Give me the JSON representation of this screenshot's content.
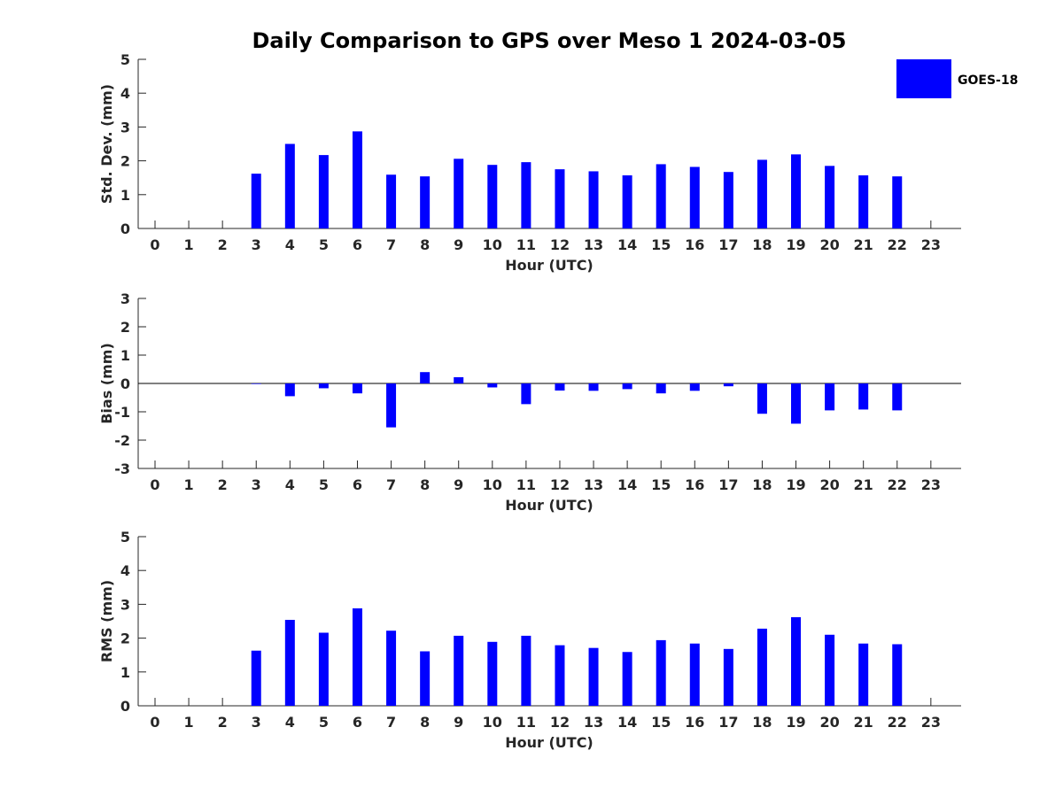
{
  "title": "Daily Comparison to GPS over Meso 1 2024-03-05",
  "legend": {
    "label": "GOES-18",
    "color": "#0000ff",
    "position": "top-right"
  },
  "colors": {
    "bar": "#0000ff",
    "axis": "#262626"
  },
  "chart_data": [
    {
      "type": "bar",
      "xlabel": "Hour (UTC)",
      "ylabel": "Std. Dev. (mm)",
      "ylim": [
        0,
        5
      ],
      "yticks": [
        0,
        1,
        2,
        3,
        4,
        5
      ],
      "categories": [
        0,
        1,
        2,
        3,
        4,
        5,
        6,
        7,
        8,
        9,
        10,
        11,
        12,
        13,
        14,
        15,
        16,
        17,
        18,
        19,
        20,
        21,
        22,
        23
      ],
      "series": [
        {
          "name": "GOES-18",
          "values": [
            null,
            null,
            null,
            1.62,
            2.5,
            2.17,
            2.87,
            1.59,
            1.54,
            2.06,
            1.88,
            1.96,
            1.75,
            1.69,
            1.57,
            1.9,
            1.82,
            1.67,
            2.03,
            2.19,
            1.85,
            1.57,
            1.54,
            null
          ]
        }
      ]
    },
    {
      "type": "bar",
      "xlabel": "Hour (UTC)",
      "ylabel": "Bias (mm)",
      "ylim": [
        -3,
        3
      ],
      "yticks": [
        -3,
        -2,
        -1,
        0,
        1,
        2,
        3
      ],
      "zero_line": true,
      "categories": [
        0,
        1,
        2,
        3,
        4,
        5,
        6,
        7,
        8,
        9,
        10,
        11,
        12,
        13,
        14,
        15,
        16,
        17,
        18,
        19,
        20,
        21,
        22,
        23
      ],
      "series": [
        {
          "name": "GOES-18",
          "values": [
            null,
            null,
            null,
            -0.02,
            -0.45,
            -0.17,
            -0.35,
            -1.55,
            0.4,
            0.22,
            -0.14,
            -0.73,
            -0.25,
            -0.26,
            -0.2,
            -0.35,
            -0.26,
            -0.1,
            -1.07,
            -1.42,
            -0.95,
            -0.92,
            -0.95,
            null
          ]
        }
      ]
    },
    {
      "type": "bar",
      "xlabel": "Hour (UTC)",
      "ylabel": "RMS (mm)",
      "ylim": [
        0,
        5
      ],
      "yticks": [
        0,
        1,
        2,
        3,
        4,
        5
      ],
      "categories": [
        0,
        1,
        2,
        3,
        4,
        5,
        6,
        7,
        8,
        9,
        10,
        11,
        12,
        13,
        14,
        15,
        16,
        17,
        18,
        19,
        20,
        21,
        22,
        23
      ],
      "series": [
        {
          "name": "GOES-18",
          "values": [
            null,
            null,
            null,
            1.63,
            2.54,
            2.16,
            2.88,
            2.22,
            1.61,
            2.07,
            1.89,
            2.07,
            1.79,
            1.71,
            1.59,
            1.94,
            1.84,
            1.68,
            2.28,
            2.62,
            2.1,
            1.84,
            1.82,
            null
          ]
        }
      ]
    }
  ]
}
